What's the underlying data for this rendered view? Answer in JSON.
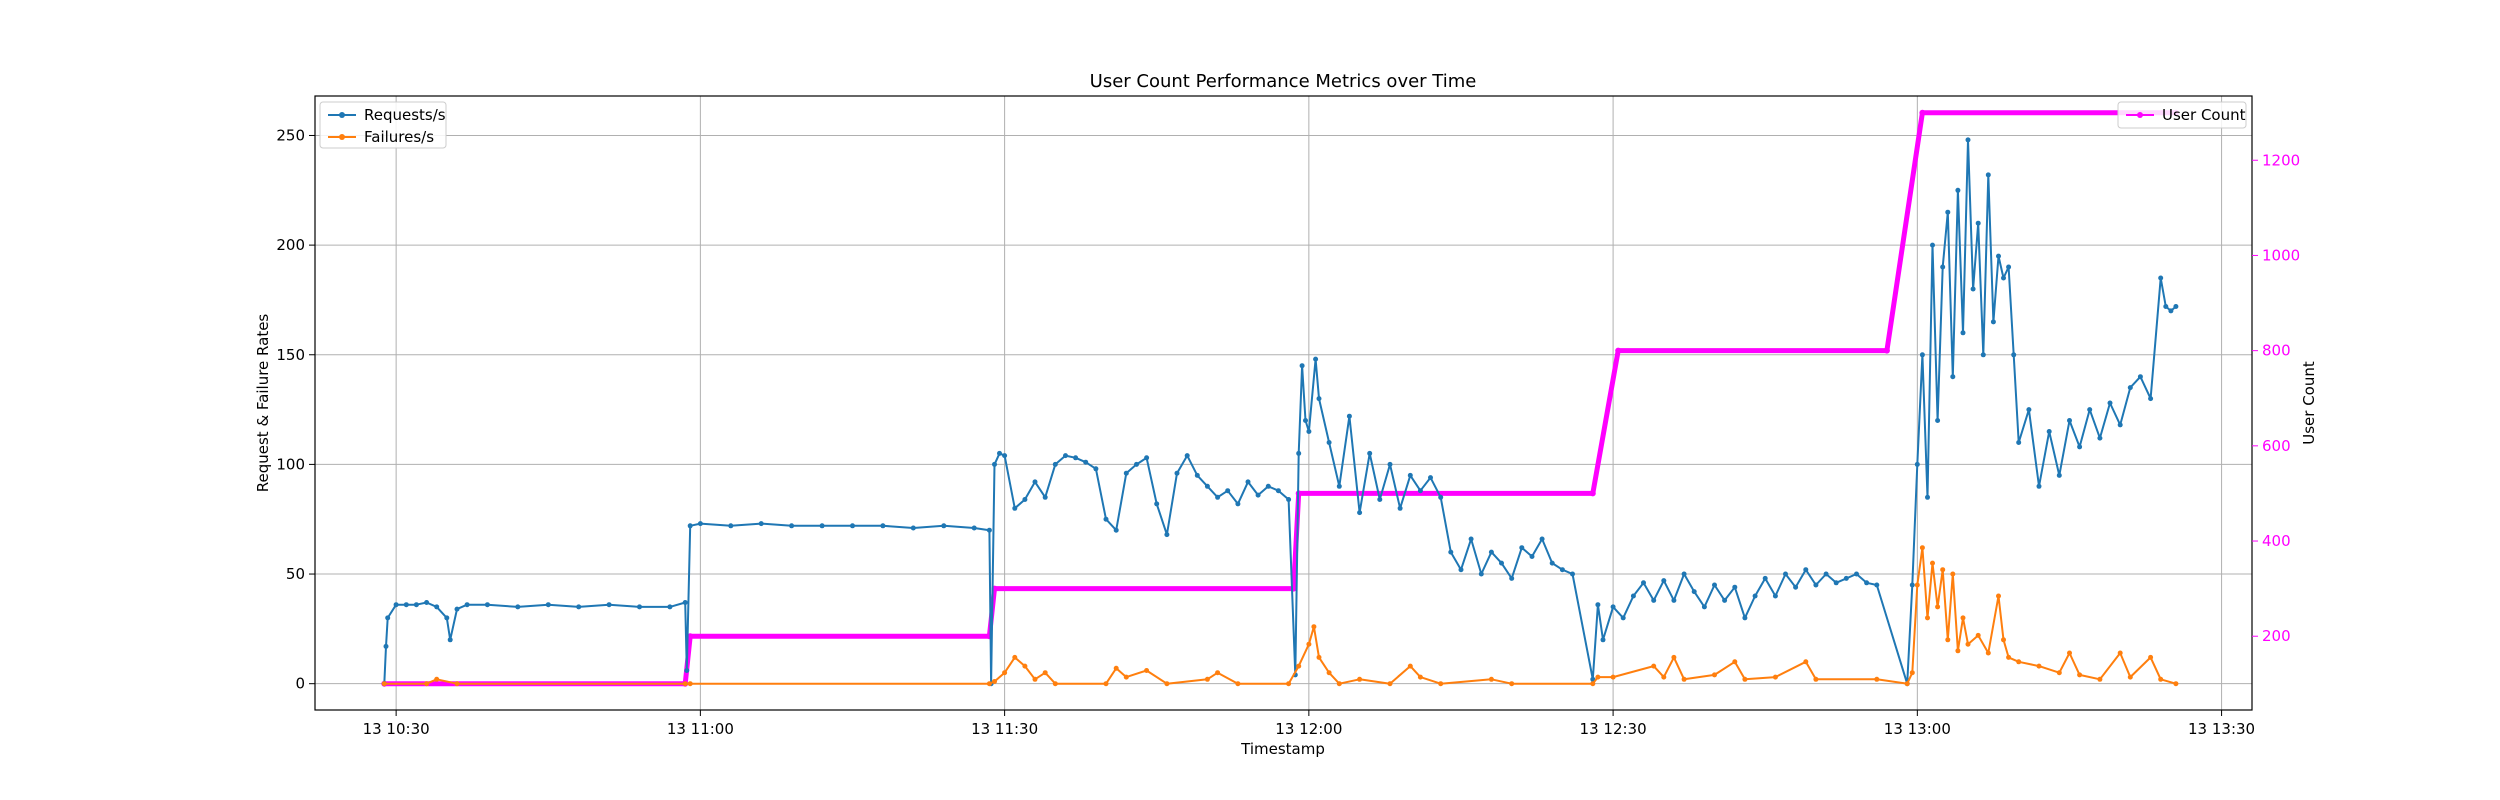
{
  "colors": {
    "requests": "#1f77b4",
    "failures": "#ff7f0e",
    "users": "#ff00ff",
    "grid": "#b0b0b0",
    "frame": "#000000"
  },
  "chart_data": {
    "type": "line",
    "title": "User Count Performance Metrics over Time",
    "xlabel": "Timestamp",
    "ylabel": "Request & Failure Rates",
    "y2label": "User Count",
    "x_unit": "time (day 13, HH:MM)",
    "xlim": [
      "13 10:22",
      "13 13:33"
    ],
    "ylim": [
      -12,
      268
    ],
    "y2lim": [
      45,
      1335
    ],
    "x_ticks": [
      "13 10:30",
      "13 11:00",
      "13 11:30",
      "13 12:00",
      "13 12:30",
      "13 13:00",
      "13 13:30"
    ],
    "y_ticks": [
      0,
      50,
      100,
      150,
      200,
      250
    ],
    "y2_ticks": [
      200,
      400,
      600,
      800,
      1000,
      1200
    ],
    "grid": true,
    "legend_left": {
      "placement": "top-left",
      "entries": [
        "Requests/s",
        "Failures/s"
      ]
    },
    "legend_right": {
      "placement": "top-right",
      "entries": [
        "User Count"
      ]
    },
    "series": [
      {
        "name": "Requests/s",
        "axis": "left",
        "points": [
          [
            "10:28:50",
            0
          ],
          [
            "10:29:00",
            17
          ],
          [
            "10:29:10",
            30
          ],
          [
            "10:30:00",
            36
          ],
          [
            "10:31:00",
            36
          ],
          [
            "10:32:00",
            36
          ],
          [
            "10:33:00",
            37
          ],
          [
            "10:34:00",
            35
          ],
          [
            "10:35:00",
            30
          ],
          [
            "10:35:20",
            20
          ],
          [
            "10:36:00",
            34
          ],
          [
            "10:37:00",
            36
          ],
          [
            "10:39:00",
            36
          ],
          [
            "10:42:00",
            35
          ],
          [
            "10:45:00",
            36
          ],
          [
            "10:48:00",
            35
          ],
          [
            "10:51:00",
            36
          ],
          [
            "10:54:00",
            35
          ],
          [
            "10:57:00",
            35
          ],
          [
            "10:58:30",
            37
          ],
          [
            "10:58:40",
            6
          ],
          [
            "10:59:00",
            72
          ],
          [
            "11:00:00",
            73
          ],
          [
            "11:03:00",
            72
          ],
          [
            "11:06:00",
            73
          ],
          [
            "11:09:00",
            72
          ],
          [
            "11:12:00",
            72
          ],
          [
            "11:15:00",
            72
          ],
          [
            "11:18:00",
            72
          ],
          [
            "11:21:00",
            71
          ],
          [
            "11:24:00",
            72
          ],
          [
            "11:27:00",
            71
          ],
          [
            "11:28:30",
            70
          ],
          [
            "11:28:40",
            0
          ],
          [
            "11:29:00",
            100
          ],
          [
            "11:29:30",
            105
          ],
          [
            "11:30:00",
            104
          ],
          [
            "11:31:00",
            80
          ],
          [
            "11:32:00",
            84
          ],
          [
            "11:33:00",
            92
          ],
          [
            "11:34:00",
            85
          ],
          [
            "11:35:00",
            100
          ],
          [
            "11:36:00",
            104
          ],
          [
            "11:37:00",
            103
          ],
          [
            "11:38:00",
            101
          ],
          [
            "11:39:00",
            98
          ],
          [
            "11:40:00",
            75
          ],
          [
            "11:41:00",
            70
          ],
          [
            "11:42:00",
            96
          ],
          [
            "11:43:00",
            100
          ],
          [
            "11:44:00",
            103
          ],
          [
            "11:45:00",
            82
          ],
          [
            "11:46:00",
            68
          ],
          [
            "11:47:00",
            96
          ],
          [
            "11:48:00",
            104
          ],
          [
            "11:49:00",
            95
          ],
          [
            "11:50:00",
            90
          ],
          [
            "11:51:00",
            85
          ],
          [
            "11:52:00",
            88
          ],
          [
            "11:53:00",
            82
          ],
          [
            "11:54:00",
            92
          ],
          [
            "11:55:00",
            86
          ],
          [
            "11:56:00",
            90
          ],
          [
            "11:57:00",
            88
          ],
          [
            "11:58:00",
            84
          ],
          [
            "11:58:40",
            4
          ],
          [
            "11:59:00",
            105
          ],
          [
            "11:59:20",
            145
          ],
          [
            "11:59:40",
            120
          ],
          [
            "12:00:00",
            115
          ],
          [
            "12:00:40",
            148
          ],
          [
            "12:01:00",
            130
          ],
          [
            "12:02:00",
            110
          ],
          [
            "12:03:00",
            90
          ],
          [
            "12:04:00",
            122
          ],
          [
            "12:05:00",
            78
          ],
          [
            "12:06:00",
            105
          ],
          [
            "12:07:00",
            84
          ],
          [
            "12:08:00",
            100
          ],
          [
            "12:09:00",
            80
          ],
          [
            "12:10:00",
            95
          ],
          [
            "12:11:00",
            88
          ],
          [
            "12:12:00",
            94
          ],
          [
            "12:13:00",
            85
          ],
          [
            "12:14:00",
            60
          ],
          [
            "12:15:00",
            52
          ],
          [
            "12:16:00",
            66
          ],
          [
            "12:17:00",
            50
          ],
          [
            "12:18:00",
            60
          ],
          [
            "12:19:00",
            55
          ],
          [
            "12:20:00",
            48
          ],
          [
            "12:21:00",
            62
          ],
          [
            "12:22:00",
            58
          ],
          [
            "12:23:00",
            66
          ],
          [
            "12:24:00",
            55
          ],
          [
            "12:25:00",
            52
          ],
          [
            "12:26:00",
            50
          ],
          [
            "12:28:00",
            2
          ],
          [
            "12:28:30",
            36
          ],
          [
            "12:29:00",
            20
          ],
          [
            "12:30:00",
            35
          ],
          [
            "12:31:00",
            30
          ],
          [
            "12:32:00",
            40
          ],
          [
            "12:33:00",
            46
          ],
          [
            "12:34:00",
            38
          ],
          [
            "12:35:00",
            47
          ],
          [
            "12:36:00",
            38
          ],
          [
            "12:37:00",
            50
          ],
          [
            "12:38:00",
            42
          ],
          [
            "12:39:00",
            35
          ],
          [
            "12:40:00",
            45
          ],
          [
            "12:41:00",
            38
          ],
          [
            "12:42:00",
            44
          ],
          [
            "12:43:00",
            30
          ],
          [
            "12:44:00",
            40
          ],
          [
            "12:45:00",
            48
          ],
          [
            "12:46:00",
            40
          ],
          [
            "12:47:00",
            50
          ],
          [
            "12:48:00",
            44
          ],
          [
            "12:49:00",
            52
          ],
          [
            "12:50:00",
            45
          ],
          [
            "12:51:00",
            50
          ],
          [
            "12:52:00",
            46
          ],
          [
            "12:53:00",
            48
          ],
          [
            "12:54:00",
            50
          ],
          [
            "12:55:00",
            46
          ],
          [
            "12:56:00",
            45
          ],
          [
            "12:59:00",
            0
          ],
          [
            "12:59:30",
            45
          ],
          [
            "13:00:00",
            100
          ],
          [
            "13:00:30",
            150
          ],
          [
            "13:01:00",
            85
          ],
          [
            "13:01:30",
            200
          ],
          [
            "13:02:00",
            120
          ],
          [
            "13:02:30",
            190
          ],
          [
            "13:03:00",
            215
          ],
          [
            "13:03:30",
            140
          ],
          [
            "13:04:00",
            225
          ],
          [
            "13:04:30",
            160
          ],
          [
            "13:05:00",
            248
          ],
          [
            "13:05:30",
            180
          ],
          [
            "13:06:00",
            210
          ],
          [
            "13:06:30",
            150
          ],
          [
            "13:07:00",
            232
          ],
          [
            "13:07:30",
            165
          ],
          [
            "13:08:00",
            195
          ],
          [
            "13:08:30",
            185
          ],
          [
            "13:09:00",
            190
          ],
          [
            "13:09:30",
            150
          ],
          [
            "13:10:00",
            110
          ],
          [
            "13:11:00",
            125
          ],
          [
            "13:12:00",
            90
          ],
          [
            "13:13:00",
            115
          ],
          [
            "13:14:00",
            95
          ],
          [
            "13:15:00",
            120
          ],
          [
            "13:16:00",
            108
          ],
          [
            "13:17:00",
            125
          ],
          [
            "13:18:00",
            112
          ],
          [
            "13:19:00",
            128
          ],
          [
            "13:20:00",
            118
          ],
          [
            "13:21:00",
            135
          ],
          [
            "13:22:00",
            140
          ],
          [
            "13:23:00",
            130
          ],
          [
            "13:24:00",
            185
          ],
          [
            "13:24:30",
            172
          ],
          [
            "13:25:00",
            170
          ],
          [
            "13:25:30",
            172
          ]
        ]
      },
      {
        "name": "Failures/s",
        "axis": "left",
        "points": [
          [
            "10:28:50",
            0
          ],
          [
            "10:33:00",
            0
          ],
          [
            "10:34:00",
            2
          ],
          [
            "10:36:00",
            0
          ],
          [
            "10:58:30",
            0
          ],
          [
            "10:59:00",
            0
          ],
          [
            "11:28:30",
            0
          ],
          [
            "11:29:00",
            1
          ],
          [
            "11:30:00",
            5
          ],
          [
            "11:31:00",
            12
          ],
          [
            "11:32:00",
            8
          ],
          [
            "11:33:00",
            2
          ],
          [
            "11:34:00",
            5
          ],
          [
            "11:35:00",
            0
          ],
          [
            "11:40:00",
            0
          ],
          [
            "11:41:00",
            7
          ],
          [
            "11:42:00",
            3
          ],
          [
            "11:44:00",
            6
          ],
          [
            "11:46:00",
            0
          ],
          [
            "11:50:00",
            2
          ],
          [
            "11:51:00",
            5
          ],
          [
            "11:53:00",
            0
          ],
          [
            "11:58:00",
            0
          ],
          [
            "11:59:00",
            8
          ],
          [
            "12:00:00",
            18
          ],
          [
            "12:00:30",
            26
          ],
          [
            "12:01:00",
            12
          ],
          [
            "12:02:00",
            5
          ],
          [
            "12:03:00",
            0
          ],
          [
            "12:05:00",
            2
          ],
          [
            "12:08:00",
            0
          ],
          [
            "12:10:00",
            8
          ],
          [
            "12:11:00",
            3
          ],
          [
            "12:13:00",
            0
          ],
          [
            "12:18:00",
            2
          ],
          [
            "12:20:00",
            0
          ],
          [
            "12:28:00",
            0
          ],
          [
            "12:28:30",
            3
          ],
          [
            "12:30:00",
            3
          ],
          [
            "12:34:00",
            8
          ],
          [
            "12:35:00",
            3
          ],
          [
            "12:36:00",
            12
          ],
          [
            "12:37:00",
            2
          ],
          [
            "12:40:00",
            4
          ],
          [
            "12:42:00",
            10
          ],
          [
            "12:43:00",
            2
          ],
          [
            "12:46:00",
            3
          ],
          [
            "12:49:00",
            10
          ],
          [
            "12:50:00",
            2
          ],
          [
            "12:56:00",
            2
          ],
          [
            "12:59:00",
            0
          ],
          [
            "12:59:30",
            5
          ],
          [
            "13:00:00",
            45
          ],
          [
            "13:00:30",
            62
          ],
          [
            "13:01:00",
            30
          ],
          [
            "13:01:30",
            55
          ],
          [
            "13:02:00",
            35
          ],
          [
            "13:02:30",
            52
          ],
          [
            "13:03:00",
            20
          ],
          [
            "13:03:30",
            50
          ],
          [
            "13:04:00",
            15
          ],
          [
            "13:04:30",
            30
          ],
          [
            "13:05:00",
            18
          ],
          [
            "13:06:00",
            22
          ],
          [
            "13:07:00",
            14
          ],
          [
            "13:08:00",
            40
          ],
          [
            "13:08:30",
            20
          ],
          [
            "13:09:00",
            12
          ],
          [
            "13:10:00",
            10
          ],
          [
            "13:12:00",
            8
          ],
          [
            "13:14:00",
            5
          ],
          [
            "13:15:00",
            14
          ],
          [
            "13:16:00",
            4
          ],
          [
            "13:18:00",
            2
          ],
          [
            "13:20:00",
            14
          ],
          [
            "13:21:00",
            3
          ],
          [
            "13:23:00",
            12
          ],
          [
            "13:24:00",
            2
          ],
          [
            "13:25:30",
            0
          ]
        ]
      },
      {
        "name": "User Count",
        "axis": "right",
        "points": [
          [
            "10:28:50",
            100
          ],
          [
            "10:58:30",
            100
          ],
          [
            "10:59:00",
            200
          ],
          [
            "11:28:30",
            200
          ],
          [
            "11:29:00",
            300
          ],
          [
            "11:58:30",
            300
          ],
          [
            "11:59:00",
            500
          ],
          [
            "12:28:00",
            500
          ],
          [
            "12:30:30",
            800
          ],
          [
            "12:57:00",
            800
          ],
          [
            "13:00:30",
            1300
          ],
          [
            "13:25:30",
            1300
          ]
        ]
      }
    ]
  }
}
